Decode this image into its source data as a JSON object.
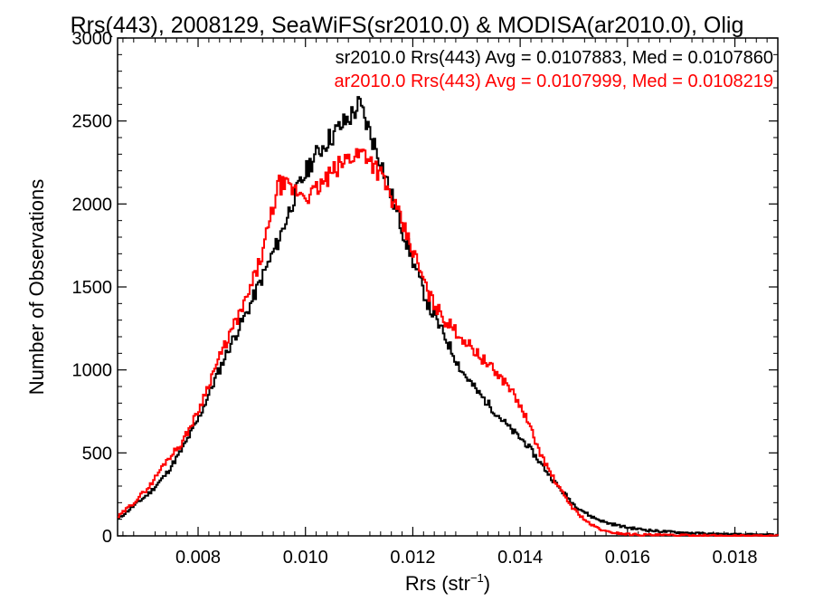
{
  "chart_data": {
    "type": "histogram-step",
    "title": "Rrs(443), 2008129, SeaWiFS(sr2010.0) & MODISA(ar2010.0), Olig",
    "xlabel_main": "Rrs (str",
    "xlabel_sup": "−1",
    "xlabel_close": ")",
    "ylabel": "Number of Observations",
    "xlim": [
      0.0065,
      0.0188
    ],
    "ylim": [
      0,
      3000
    ],
    "xticks": [
      0.008,
      0.01,
      0.012,
      0.014,
      0.016,
      0.018
    ],
    "xtick_labels": [
      "0.008",
      "0.010",
      "0.012",
      "0.014",
      "0.016",
      "0.018"
    ],
    "yticks": [
      0,
      500,
      1000,
      1500,
      2000,
      2500,
      3000
    ],
    "ytick_labels": [
      "0",
      "500",
      "1000",
      "1500",
      "2000",
      "2500",
      "3000"
    ],
    "legend_position": "top-right",
    "series": [
      {
        "name": "sr2010.0 Rrs(443) Avg = 0.0107883, Med = 0.0107860",
        "color": "#000000",
        "x": [
          0.0065,
          0.0068,
          0.0071,
          0.0074,
          0.0077,
          0.008,
          0.0083,
          0.0086,
          0.0089,
          0.0092,
          0.0095,
          0.0098,
          0.0101,
          0.0104,
          0.0107,
          0.0109,
          0.011,
          0.0111,
          0.0114,
          0.0117,
          0.012,
          0.0123,
          0.0126,
          0.0129,
          0.0132,
          0.0135,
          0.0138,
          0.0141,
          0.0144,
          0.0147,
          0.015,
          0.0153,
          0.0156,
          0.016,
          0.0165,
          0.017,
          0.0175,
          0.018,
          0.0188
        ],
        "y": [
          100,
          180,
          260,
          370,
          520,
          700,
          930,
          1150,
          1340,
          1560,
          1780,
          2050,
          2250,
          2380,
          2480,
          2550,
          2600,
          2520,
          2260,
          1950,
          1660,
          1380,
          1200,
          1000,
          870,
          760,
          650,
          560,
          430,
          300,
          190,
          120,
          80,
          50,
          30,
          20,
          12,
          8,
          5
        ]
      },
      {
        "name": "ar2010.0 Rrs(443) Avg = 0.0107999, Med = 0.0108219",
        "color": "#ff0000",
        "x": [
          0.0065,
          0.0068,
          0.0071,
          0.0074,
          0.0077,
          0.008,
          0.0083,
          0.0086,
          0.0089,
          0.0092,
          0.0095,
          0.0098,
          0.0101,
          0.0104,
          0.0107,
          0.0109,
          0.011,
          0.0111,
          0.0114,
          0.0117,
          0.012,
          0.0123,
          0.0126,
          0.0129,
          0.0132,
          0.0135,
          0.0138,
          0.0141,
          0.0144,
          0.0147,
          0.015,
          0.0153,
          0.0156,
          0.016,
          0.0165,
          0.017,
          0.0175,
          0.018,
          0.0188
        ],
        "y": [
          110,
          200,
          300,
          450,
          560,
          750,
          1000,
          1220,
          1420,
          1700,
          2120,
          2080,
          2050,
          2150,
          2250,
          2300,
          2300,
          2320,
          2180,
          1960,
          1720,
          1450,
          1300,
          1200,
          1100,
          1000,
          900,
          720,
          480,
          300,
          160,
          70,
          25,
          10,
          5,
          3,
          2,
          1,
          0
        ]
      }
    ]
  }
}
